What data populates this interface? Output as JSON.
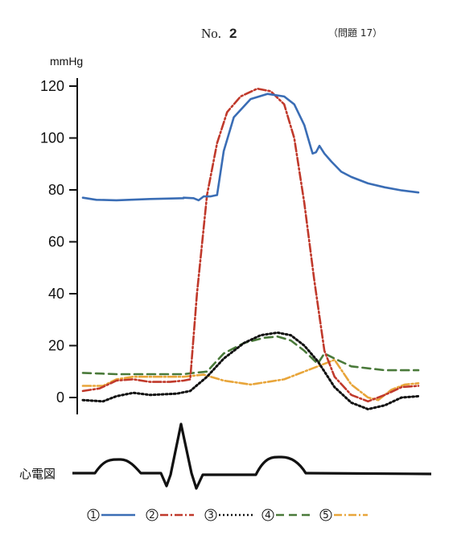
{
  "header": {
    "no_label": "No.",
    "no_value": "2",
    "question": "（問題 17）"
  },
  "chart_data": {
    "type": "line",
    "ylabel": "mmHg",
    "ylim": [
      -5,
      120
    ],
    "yticks": [
      "120",
      "100",
      "80",
      "60",
      "40",
      "20",
      "0"
    ],
    "ecg_label": "心電図",
    "series": [
      {
        "name": "①",
        "color": "#3a6db5",
        "dash": "",
        "width": 2.6,
        "points": [
          [
            0,
            77
          ],
          [
            0.04,
            76.2
          ],
          [
            0.1,
            76
          ],
          [
            0.2,
            76.5
          ],
          [
            0.3,
            76.8
          ],
          [
            0.3,
            77
          ],
          [
            0.33,
            76.8
          ],
          [
            0.345,
            76
          ],
          [
            0.36,
            77.5
          ],
          [
            0.38,
            77.5
          ],
          [
            0.4,
            78
          ],
          [
            0.42,
            95
          ],
          [
            0.45,
            108
          ],
          [
            0.5,
            115
          ],
          [
            0.55,
            117
          ],
          [
            0.6,
            116
          ],
          [
            0.63,
            113
          ],
          [
            0.66,
            105
          ],
          [
            0.68,
            96
          ],
          [
            0.685,
            94
          ],
          [
            0.695,
            94.5
          ],
          [
            0.705,
            97
          ],
          [
            0.72,
            94
          ],
          [
            0.74,
            91
          ],
          [
            0.77,
            87
          ],
          [
            0.8,
            85
          ],
          [
            0.85,
            82.5
          ],
          [
            0.9,
            81
          ],
          [
            0.95,
            79.8
          ],
          [
            1,
            79
          ]
        ]
      },
      {
        "name": "②",
        "color": "#c0392b",
        "dash": "10 3 2 3",
        "width": 2.6,
        "points": [
          [
            0,
            2.5
          ],
          [
            0.05,
            3.5
          ],
          [
            0.1,
            6.5
          ],
          [
            0.15,
            7
          ],
          [
            0.2,
            6
          ],
          [
            0.26,
            6
          ],
          [
            0.3,
            6.5
          ],
          [
            0.32,
            7
          ],
          [
            0.34,
            40
          ],
          [
            0.37,
            78
          ],
          [
            0.4,
            98
          ],
          [
            0.43,
            110
          ],
          [
            0.47,
            116
          ],
          [
            0.52,
            119
          ],
          [
            0.56,
            118
          ],
          [
            0.6,
            113
          ],
          [
            0.63,
            100
          ],
          [
            0.66,
            75
          ],
          [
            0.69,
            45
          ],
          [
            0.72,
            18
          ],
          [
            0.75,
            8
          ],
          [
            0.8,
            1
          ],
          [
            0.85,
            -1.5
          ],
          [
            0.9,
            1
          ],
          [
            0.95,
            4
          ],
          [
            1,
            4.5
          ]
        ]
      },
      {
        "name": "③",
        "color": "#111111",
        "dash": "2 3",
        "width": 3,
        "points": [
          [
            0,
            -1
          ],
          [
            0.06,
            -1.5
          ],
          [
            0.1,
            0.5
          ],
          [
            0.15,
            1.8
          ],
          [
            0.2,
            1
          ],
          [
            0.28,
            1.5
          ],
          [
            0.32,
            2.5
          ],
          [
            0.37,
            8
          ],
          [
            0.42,
            15
          ],
          [
            0.48,
            21
          ],
          [
            0.53,
            24
          ],
          [
            0.58,
            25
          ],
          [
            0.62,
            24
          ],
          [
            0.66,
            20
          ],
          [
            0.7,
            14
          ],
          [
            0.75,
            4
          ],
          [
            0.8,
            -2
          ],
          [
            0.85,
            -4.5
          ],
          [
            0.9,
            -3
          ],
          [
            0.95,
            0
          ],
          [
            1,
            0.5
          ]
        ]
      },
      {
        "name": "④",
        "color": "#4a7a3a",
        "dash": "10 6",
        "width": 2.6,
        "points": [
          [
            0,
            9.5
          ],
          [
            0.1,
            9
          ],
          [
            0.2,
            9
          ],
          [
            0.3,
            9
          ],
          [
            0.33,
            9.5
          ],
          [
            0.37,
            10
          ],
          [
            0.42,
            17
          ],
          [
            0.48,
            21
          ],
          [
            0.54,
            23
          ],
          [
            0.58,
            23.5
          ],
          [
            0.62,
            22
          ],
          [
            0.66,
            18
          ],
          [
            0.7,
            13
          ],
          [
            0.72,
            17
          ],
          [
            0.75,
            15
          ],
          [
            0.8,
            12
          ],
          [
            0.9,
            10.5
          ],
          [
            1,
            10.5
          ]
        ]
      },
      {
        "name": "⑤",
        "color": "#e8a53a",
        "dash": "10 3 2 3",
        "width": 2.6,
        "points": [
          [
            0,
            4.5
          ],
          [
            0.06,
            4.5
          ],
          [
            0.1,
            7
          ],
          [
            0.15,
            8
          ],
          [
            0.2,
            8
          ],
          [
            0.25,
            8
          ],
          [
            0.3,
            8
          ],
          [
            0.36,
            8.8
          ],
          [
            0.42,
            6.5
          ],
          [
            0.5,
            5
          ],
          [
            0.6,
            7
          ],
          [
            0.7,
            12
          ],
          [
            0.75,
            14.5
          ],
          [
            0.8,
            5
          ],
          [
            0.85,
            0
          ],
          [
            0.88,
            -1
          ],
          [
            0.92,
            3
          ],
          [
            0.96,
            5
          ],
          [
            1,
            5.5
          ]
        ]
      }
    ]
  },
  "legend": [
    {
      "num": "①",
      "color": "#3a6db5",
      "dash": ""
    },
    {
      "num": "②",
      "color": "#c0392b",
      "dash": "10 3 2 3"
    },
    {
      "num": "③",
      "color": "#111111",
      "dash": "2 3"
    },
    {
      "num": "④",
      "color": "#4a7a3a",
      "dash": "10 6"
    },
    {
      "num": "⑤",
      "color": "#e8a53a",
      "dash": "10 3 2 3"
    }
  ]
}
